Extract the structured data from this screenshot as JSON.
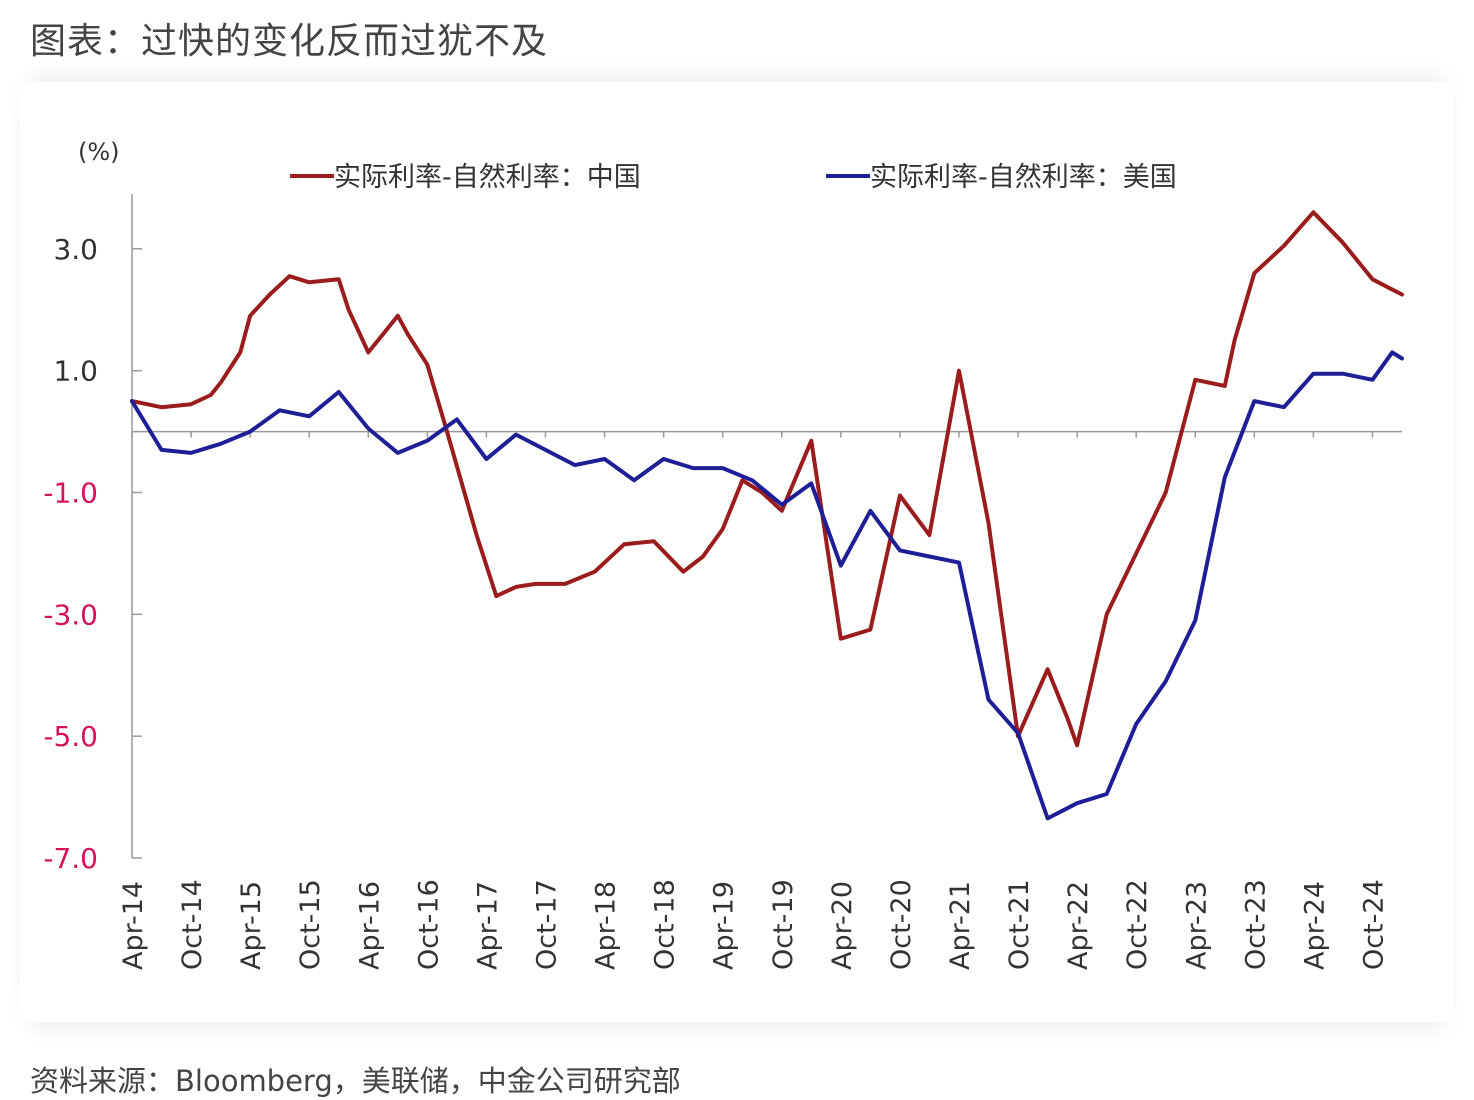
{
  "page": {
    "title": "图表：过快的变化反而过犹不及",
    "source": "资料来源：Bloomberg，美联储，中金公司研究部"
  },
  "chart_data": {
    "type": "line",
    "unit_label": "(%)",
    "ylim": [
      -7,
      3.9
    ],
    "yticks": [
      {
        "value": 3,
        "label": "3.0",
        "color": "#333333"
      },
      {
        "value": 1,
        "label": "1.0",
        "color": "#333333"
      },
      {
        "value": -1,
        "label": "-1.0",
        "color": "#d4145a"
      },
      {
        "value": -3,
        "label": "-3.0",
        "color": "#d4145a"
      },
      {
        "value": -5,
        "label": "-5.0",
        "color": "#d4145a"
      },
      {
        "value": -7,
        "label": "-7.0",
        "color": "#d4145a"
      }
    ],
    "x_start": "2014-04",
    "x_end": "2025-01",
    "x_ticks": [
      "Apr-14",
      "Oct-14",
      "Apr-15",
      "Oct-15",
      "Apr-16",
      "Oct-16",
      "Apr-17",
      "Oct-17",
      "Apr-18",
      "Oct-18",
      "Apr-19",
      "Oct-19",
      "Apr-20",
      "Oct-20",
      "Apr-21",
      "Oct-21",
      "Apr-22",
      "Oct-22",
      "Apr-23",
      "Oct-23",
      "Apr-24",
      "Oct-24"
    ],
    "x_tick_dates": [
      "2014-04",
      "2014-10",
      "2015-04",
      "2015-10",
      "2016-04",
      "2016-10",
      "2017-04",
      "2017-10",
      "2018-04",
      "2018-10",
      "2019-04",
      "2019-10",
      "2020-04",
      "2020-10",
      "2021-04",
      "2021-10",
      "2022-04",
      "2022-10",
      "2023-04",
      "2023-10",
      "2024-04",
      "2024-10"
    ],
    "legend_position": "top",
    "grid": false,
    "series": [
      {
        "name": "实际利率-自然利率：中国",
        "color": "#9b1c1c",
        "points": [
          [
            "2014-04",
            0.5
          ],
          [
            "2014-07",
            0.4
          ],
          [
            "2014-10",
            0.45
          ],
          [
            "2014-12",
            0.6
          ],
          [
            "2015-01",
            0.8
          ],
          [
            "2015-03",
            1.3
          ],
          [
            "2015-04",
            1.9
          ],
          [
            "2015-06",
            2.25
          ],
          [
            "2015-08",
            2.55
          ],
          [
            "2015-10",
            2.45
          ],
          [
            "2016-01",
            2.5
          ],
          [
            "2016-02",
            2.0
          ],
          [
            "2016-04",
            1.3
          ],
          [
            "2016-07",
            1.9
          ],
          [
            "2016-08",
            1.6
          ],
          [
            "2016-10",
            1.1
          ],
          [
            "2016-12",
            0.0
          ],
          [
            "2017-03",
            -1.7
          ],
          [
            "2017-05",
            -2.7
          ],
          [
            "2017-07",
            -2.55
          ],
          [
            "2017-09",
            -2.5
          ],
          [
            "2017-12",
            -2.5
          ],
          [
            "2018-03",
            -2.3
          ],
          [
            "2018-06",
            -1.85
          ],
          [
            "2018-09",
            -1.8
          ],
          [
            "2018-12",
            -2.3
          ],
          [
            "2019-02",
            -2.05
          ],
          [
            "2019-04",
            -1.6
          ],
          [
            "2019-06",
            -0.8
          ],
          [
            "2019-08",
            -1.0
          ],
          [
            "2019-10",
            -1.3
          ],
          [
            "2020-01",
            -0.15
          ],
          [
            "2020-04",
            -3.4
          ],
          [
            "2020-07",
            -3.25
          ],
          [
            "2020-10",
            -1.05
          ],
          [
            "2021-01",
            -1.7
          ],
          [
            "2021-04",
            1.0
          ],
          [
            "2021-07",
            -1.5
          ],
          [
            "2021-10",
            -5.0
          ],
          [
            "2022-01",
            -3.9
          ],
          [
            "2022-03",
            -4.7
          ],
          [
            "2022-04",
            -5.15
          ],
          [
            "2022-07",
            -3.0
          ],
          [
            "2022-10",
            -2.0
          ],
          [
            "2023-01",
            -1.0
          ],
          [
            "2023-04",
            0.85
          ],
          [
            "2023-07",
            0.75
          ],
          [
            "2023-08",
            1.5
          ],
          [
            "2023-10",
            2.6
          ],
          [
            "2024-01",
            3.05
          ],
          [
            "2024-04",
            3.6
          ],
          [
            "2024-07",
            3.1
          ],
          [
            "2024-10",
            2.5
          ],
          [
            "2025-01",
            2.25
          ]
        ]
      },
      {
        "name": "实际利率-自然利率：美国",
        "color": "#1e1e96",
        "points": [
          [
            "2014-04",
            0.5
          ],
          [
            "2014-07",
            -0.3
          ],
          [
            "2014-10",
            -0.35
          ],
          [
            "2015-01",
            -0.2
          ],
          [
            "2015-04",
            0.0
          ],
          [
            "2015-07",
            0.35
          ],
          [
            "2015-10",
            0.25
          ],
          [
            "2016-01",
            0.65
          ],
          [
            "2016-04",
            0.05
          ],
          [
            "2016-07",
            -0.35
          ],
          [
            "2016-10",
            -0.15
          ],
          [
            "2017-01",
            0.2
          ],
          [
            "2017-04",
            -0.45
          ],
          [
            "2017-07",
            -0.05
          ],
          [
            "2017-10",
            -0.3
          ],
          [
            "2018-01",
            -0.55
          ],
          [
            "2018-04",
            -0.45
          ],
          [
            "2018-07",
            -0.8
          ],
          [
            "2018-10",
            -0.45
          ],
          [
            "2019-01",
            -0.6
          ],
          [
            "2019-04",
            -0.6
          ],
          [
            "2019-07",
            -0.8
          ],
          [
            "2019-10",
            -1.2
          ],
          [
            "2020-01",
            -0.85
          ],
          [
            "2020-04",
            -2.2
          ],
          [
            "2020-07",
            -1.3
          ],
          [
            "2020-10",
            -1.95
          ],
          [
            "2021-01",
            -2.05
          ],
          [
            "2021-04",
            -2.15
          ],
          [
            "2021-07",
            -4.4
          ],
          [
            "2021-10",
            -4.95
          ],
          [
            "2022-01",
            -6.35
          ],
          [
            "2022-04",
            -6.1
          ],
          [
            "2022-07",
            -5.95
          ],
          [
            "2022-10",
            -4.8
          ],
          [
            "2023-01",
            -4.1
          ],
          [
            "2023-04",
            -3.1
          ],
          [
            "2023-07",
            -0.75
          ],
          [
            "2023-10",
            0.5
          ],
          [
            "2024-01",
            0.4
          ],
          [
            "2024-04",
            0.95
          ],
          [
            "2024-07",
            0.95
          ],
          [
            "2024-10",
            0.85
          ],
          [
            "2024-12",
            1.3
          ],
          [
            "2025-01",
            1.2
          ]
        ]
      }
    ]
  }
}
